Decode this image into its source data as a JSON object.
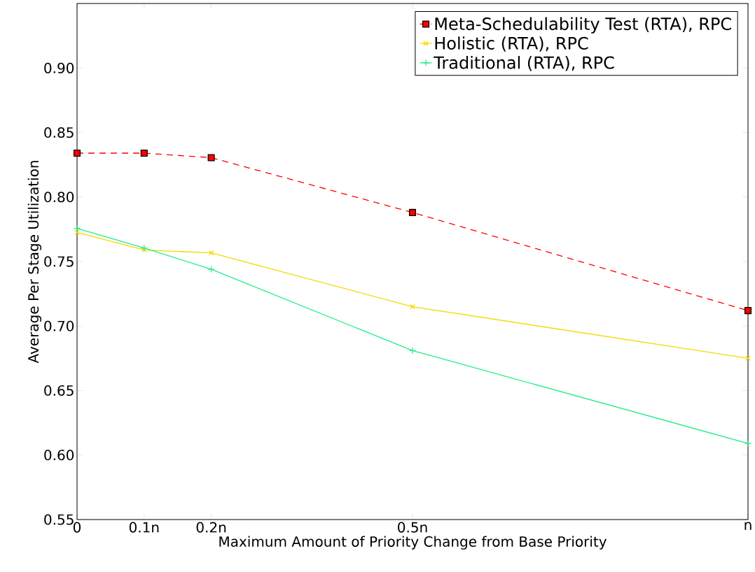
{
  "chart_data": {
    "type": "line",
    "xlabel": "Maximum Amount of Priority Change from Base Priority",
    "ylabel": "Average Per Stage Utilization",
    "x": [
      0,
      0.1,
      0.2,
      0.5,
      1
    ],
    "series": [
      {
        "name": "Meta-Schedulability Test (RTA), RPC",
        "color": "#ff0000",
        "marker": "square",
        "line_style": "dashed",
        "values": [
          0.834,
          0.834,
          0.8305,
          0.788,
          0.712
        ]
      },
      {
        "name": "Holistic (RTA), RPC",
        "color": "#f5d800",
        "marker": "cross",
        "line_style": "solid",
        "values": [
          0.7725,
          0.759,
          0.7567,
          0.715,
          0.675
        ]
      },
      {
        "name": "Traditional (RTA), RPC",
        "color": "#22ee88",
        "marker": "plus",
        "line_style": "solid",
        "values": [
          0.7757,
          0.7605,
          0.744,
          0.681,
          0.609
        ]
      }
    ],
    "xlim": [
      0,
      1
    ],
    "ylim": [
      0.55,
      0.95
    ],
    "xticks": [
      0,
      {
        "value": 0.1,
        "label": "0.1n"
      },
      {
        "value": 0.2,
        "label": "0.2n"
      },
      {
        "value": 0.5,
        "label": "0.5n"
      },
      {
        "value": 1,
        "label": "n"
      }
    ],
    "yticks": [
      0.55,
      {
        "value": 0.6,
        "label": "0.60"
      },
      0.65,
      {
        "value": 0.7,
        "label": "0.70"
      },
      0.75,
      {
        "value": 0.8,
        "label": "0.80"
      },
      0.85,
      {
        "value": 0.9,
        "label": "0.90"
      }
    ],
    "grid": false,
    "legend": "top right"
  }
}
